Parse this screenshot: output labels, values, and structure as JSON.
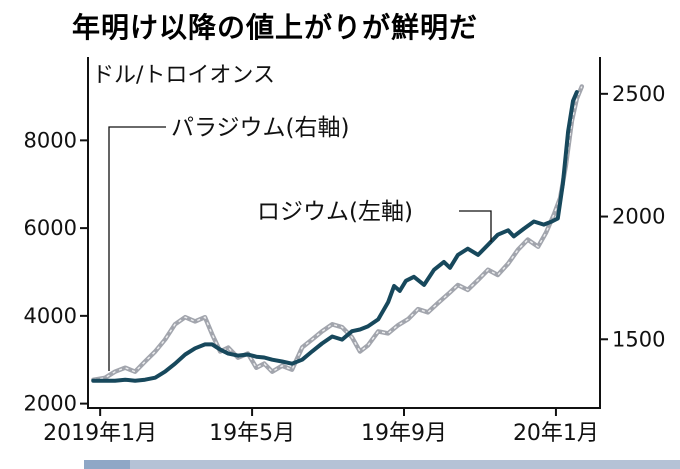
{
  "figure": {
    "title": "年明け以降の値上がりが鮮明だ"
  },
  "colors": {
    "axis": "#111111",
    "background": "#ffffff",
    "bottom_band": "#b5c2d6",
    "bottom_band_accent": "#8fa7c6",
    "rhodium_line": "#17485c",
    "palladium_line": "#a2a5ad"
  },
  "chart_data": {
    "type": "line",
    "title": "年明け以降の値上がりが鮮明だ",
    "unit_label": "ドル/トロイオンス",
    "grid": false,
    "legend_position": "inline-annotations",
    "x_axis_note": "x = months since the 2019年1月 tick",
    "xlim": [
      -0.32,
      13.16
    ],
    "x_ticks": {
      "positions": [
        0,
        4,
        8,
        12
      ],
      "labels": [
        "2019年1月",
        "19年5月",
        "19年9月",
        "20年1月"
      ]
    },
    "axes": {
      "left": {
        "ylim": [
          1900,
          9900
        ],
        "ticks": [
          2000,
          4000,
          6000,
          8000
        ]
      },
      "right": {
        "ylim": [
          1220,
          2650
        ],
        "ticks": [
          1500,
          2000,
          2500
        ]
      }
    },
    "annotations": [
      {
        "text": "パラジウム(右軸)"
      },
      {
        "text": "ロジウム(左軸)"
      }
    ],
    "series": [
      {
        "name": "パラジウム(右軸)",
        "axis": "right",
        "color": "#a2a5ad",
        "width": 4.5,
        "texture": true,
        "points": [
          [
            -0.18,
            1335
          ],
          [
            0.13,
            1343
          ],
          [
            0.39,
            1368
          ],
          [
            0.66,
            1384
          ],
          [
            0.92,
            1368
          ],
          [
            1.18,
            1409
          ],
          [
            1.45,
            1450
          ],
          [
            1.71,
            1499
          ],
          [
            1.97,
            1561
          ],
          [
            2.24,
            1590
          ],
          [
            2.5,
            1573
          ],
          [
            2.76,
            1590
          ],
          [
            2.95,
            1520
          ],
          [
            3.16,
            1450
          ],
          [
            3.37,
            1466
          ],
          [
            3.63,
            1425
          ],
          [
            3.89,
            1442
          ],
          [
            4.11,
            1384
          ],
          [
            4.32,
            1401
          ],
          [
            4.53,
            1368
          ],
          [
            4.79,
            1392
          ],
          [
            5.05,
            1376
          ],
          [
            5.32,
            1467
          ],
          [
            5.58,
            1499
          ],
          [
            5.84,
            1532
          ],
          [
            6.11,
            1561
          ],
          [
            6.37,
            1549
          ],
          [
            6.63,
            1508
          ],
          [
            6.84,
            1450
          ],
          [
            7.05,
            1475
          ],
          [
            7.32,
            1532
          ],
          [
            7.58,
            1524
          ],
          [
            7.84,
            1557
          ],
          [
            8.11,
            1582
          ],
          [
            8.37,
            1623
          ],
          [
            8.63,
            1610
          ],
          [
            8.89,
            1647
          ],
          [
            9.16,
            1684
          ],
          [
            9.42,
            1721
          ],
          [
            9.68,
            1701
          ],
          [
            9.95,
            1742
          ],
          [
            10.21,
            1783
          ],
          [
            10.47,
            1762
          ],
          [
            10.74,
            1808
          ],
          [
            11.0,
            1865
          ],
          [
            11.26,
            1906
          ],
          [
            11.53,
            1877
          ],
          [
            11.74,
            1935
          ],
          [
            11.95,
            2009
          ],
          [
            12.11,
            2075
          ],
          [
            12.26,
            2206
          ],
          [
            12.42,
            2390
          ],
          [
            12.55,
            2480
          ],
          [
            12.68,
            2530
          ]
        ]
      },
      {
        "name": "ロジウム(左軸)",
        "axis": "left",
        "color": "#17485c",
        "width": 4,
        "texture": false,
        "points": [
          [
            -0.18,
            2520
          ],
          [
            0.13,
            2520
          ],
          [
            0.39,
            2520
          ],
          [
            0.66,
            2545
          ],
          [
            0.92,
            2520
          ],
          [
            1.18,
            2545
          ],
          [
            1.45,
            2590
          ],
          [
            1.71,
            2730
          ],
          [
            1.97,
            2910
          ],
          [
            2.24,
            3120
          ],
          [
            2.5,
            3260
          ],
          [
            2.76,
            3350
          ],
          [
            2.95,
            3350
          ],
          [
            3.16,
            3230
          ],
          [
            3.37,
            3140
          ],
          [
            3.63,
            3095
          ],
          [
            3.89,
            3120
          ],
          [
            4.11,
            3070
          ],
          [
            4.32,
            3050
          ],
          [
            4.53,
            3000
          ],
          [
            4.79,
            2960
          ],
          [
            5.05,
            2910
          ],
          [
            5.32,
            3000
          ],
          [
            5.58,
            3190
          ],
          [
            5.84,
            3370
          ],
          [
            6.11,
            3530
          ],
          [
            6.37,
            3460
          ],
          [
            6.63,
            3650
          ],
          [
            6.84,
            3690
          ],
          [
            7.05,
            3760
          ],
          [
            7.32,
            3920
          ],
          [
            7.58,
            4310
          ],
          [
            7.74,
            4680
          ],
          [
            7.89,
            4570
          ],
          [
            8.05,
            4800
          ],
          [
            8.26,
            4890
          ],
          [
            8.53,
            4705
          ],
          [
            8.79,
            5050
          ],
          [
            9.05,
            5230
          ],
          [
            9.21,
            5095
          ],
          [
            9.42,
            5390
          ],
          [
            9.68,
            5530
          ],
          [
            9.95,
            5390
          ],
          [
            10.21,
            5620
          ],
          [
            10.47,
            5850
          ],
          [
            10.74,
            5950
          ],
          [
            10.89,
            5810
          ],
          [
            11.16,
            5990
          ],
          [
            11.42,
            6150
          ],
          [
            11.68,
            6080
          ],
          [
            11.89,
            6150
          ],
          [
            12.05,
            6220
          ],
          [
            12.18,
            7000
          ],
          [
            12.32,
            8200
          ],
          [
            12.45,
            8900
          ],
          [
            12.55,
            9100
          ]
        ]
      }
    ]
  }
}
